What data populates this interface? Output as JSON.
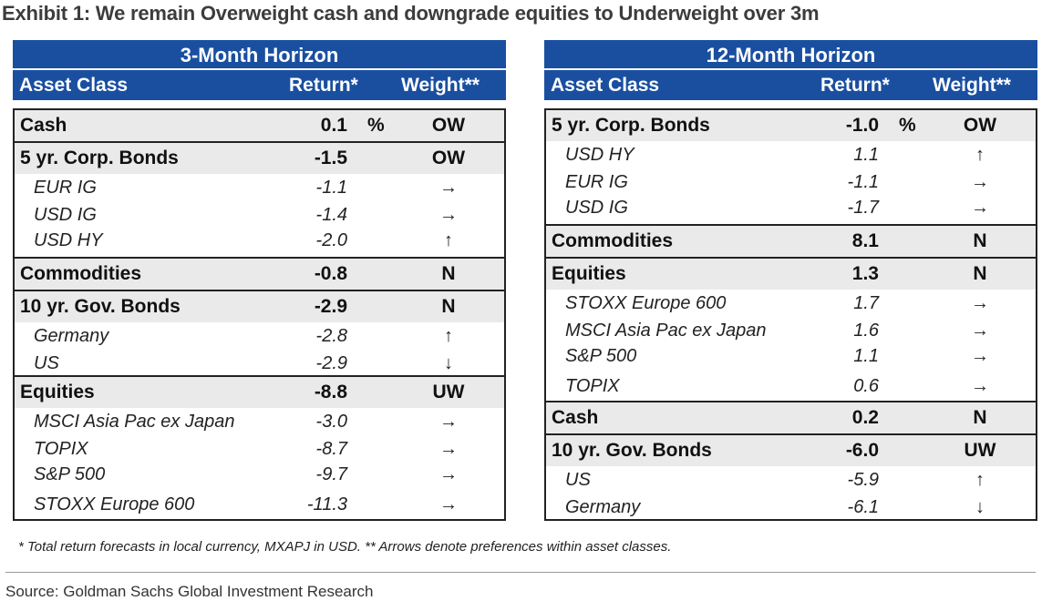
{
  "title": "Exhibit 1: We remain Overweight cash and downgrade equities to Underweight over 3m",
  "footnote": "* Total return forecasts in local currency, MXAPJ in USD. ** Arrows denote preferences within asset classes.",
  "source": "Source: Goldman Sachs Global Investment Research",
  "colors": {
    "header_bg": "#1a4fa0",
    "header_text": "#ffffff",
    "main_row_bg": "#eaeaea",
    "border": "#222222"
  },
  "chart_data": [
    {
      "type": "table",
      "title": "3-Month Horizon",
      "columns": [
        "Asset Class",
        "Return*",
        "Weight**"
      ],
      "groups": [
        {
          "name": "Cash",
          "return": "0.1",
          "unit": "%",
          "weight": "OW",
          "items": []
        },
        {
          "name": "5 yr. Corp. Bonds",
          "return": "-1.5",
          "weight": "OW",
          "items": [
            {
              "name": "EUR IG",
              "return": "-1.1",
              "arrow": "→"
            },
            {
              "name": "USD IG",
              "return": "-1.4",
              "arrow": "→"
            },
            {
              "name": "USD HY",
              "return": "-2.0",
              "arrow": "↑"
            }
          ]
        },
        {
          "name": "Commodities",
          "return": "-0.8",
          "weight": "N",
          "items": []
        },
        {
          "name": "10 yr. Gov. Bonds",
          "return": "-2.9",
          "weight": "N",
          "items": [
            {
              "name": "Germany",
              "return": "-2.8",
              "arrow": "↑"
            },
            {
              "name": "US",
              "return": "-2.9",
              "arrow": "↓"
            }
          ]
        },
        {
          "name": "Equities",
          "return": "-8.8",
          "weight": "UW",
          "items": [
            {
              "name": "MSCI Asia Pac ex Japan",
              "return": "-3.0",
              "arrow": "→"
            },
            {
              "name": "TOPIX",
              "return": "-8.7",
              "arrow": "→"
            },
            {
              "name": "S&P 500",
              "return": "-9.7",
              "arrow": "→"
            },
            {
              "name": "STOXX Europe 600",
              "return": "-11.3",
              "arrow": "→"
            }
          ]
        }
      ]
    },
    {
      "type": "table",
      "title": "12-Month Horizon",
      "columns": [
        "Asset Class",
        "Return*",
        "Weight**"
      ],
      "groups": [
        {
          "name": "5 yr. Corp. Bonds",
          "return": "-1.0",
          "unit": "%",
          "weight": "OW",
          "items": [
            {
              "name": "USD HY",
              "return": "1.1",
              "arrow": "↑"
            },
            {
              "name": "EUR IG",
              "return": "-1.1",
              "arrow": "→"
            },
            {
              "name": "USD IG",
              "return": "-1.7",
              "arrow": "→"
            }
          ]
        },
        {
          "name": "Commodities",
          "return": "8.1",
          "weight": "N",
          "items": []
        },
        {
          "name": "Equities",
          "return": "1.3",
          "weight": "N",
          "items": [
            {
              "name": "STOXX Europe 600",
              "return": "1.7",
              "arrow": "→"
            },
            {
              "name": "MSCI Asia Pac ex Japan",
              "return": "1.6",
              "arrow": "→"
            },
            {
              "name": "S&P 500",
              "return": "1.1",
              "arrow": "→"
            },
            {
              "name": "TOPIX",
              "return": "0.6",
              "arrow": "→"
            }
          ]
        },
        {
          "name": "Cash",
          "return": "0.2",
          "weight": "N",
          "items": []
        },
        {
          "name": "10 yr. Gov. Bonds",
          "return": "-6.0",
          "weight": "UW",
          "items": [
            {
              "name": "US",
              "return": "-5.9",
              "arrow": "↑"
            },
            {
              "name": "Germany",
              "return": "-6.1",
              "arrow": "↓"
            }
          ]
        }
      ]
    }
  ]
}
